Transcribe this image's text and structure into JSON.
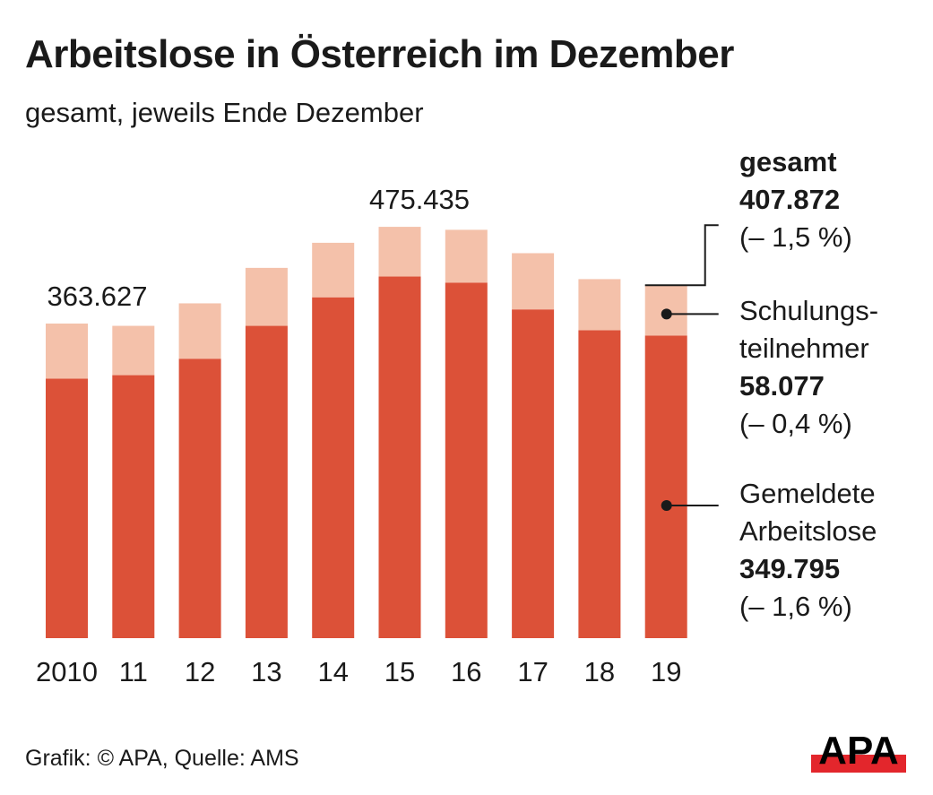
{
  "title": "Arbeitslose in Österreich im Dezember",
  "subtitle": "gesamt, jeweils Ende Dezember",
  "source": "Grafik: © APA, Quelle: AMS",
  "logo_text": "APA",
  "colors": {
    "arbeitslose": "#dc5138",
    "schulung": "#f4c1aa",
    "text": "#1a1a1a",
    "logo_red": "#e3262c"
  },
  "legend": {
    "gesamt": {
      "label": "gesamt",
      "value": "407.872",
      "change": "(– 1,5 %)"
    },
    "schulung": {
      "label_line1": "Schulungs-",
      "label_line2": "teilnehmer",
      "value": "58.077",
      "change": "(– 0,4 %)"
    },
    "arbeitslose": {
      "label_line1": "Gemeldete",
      "label_line2": "Arbeitslose",
      "value": "349.795",
      "change": "(– 1,6 %)"
    }
  },
  "chart_data": {
    "type": "bar",
    "stacked": true,
    "title": "Arbeitslose in Österreich im Dezember",
    "subtitle": "gesamt, jeweils Ende Dezember",
    "xlabel": "",
    "ylabel": "",
    "categories": [
      "2010",
      "11",
      "12",
      "13",
      "14",
      "15",
      "16",
      "17",
      "18",
      "19"
    ],
    "series": [
      {
        "name": "Gemeldete Arbeitslose",
        "values": [
          300000,
          304000,
          323000,
          361000,
          394000,
          418000,
          411000,
          380000,
          356000,
          349795
        ]
      },
      {
        "name": "Schulungsteilnehmer",
        "values": [
          63627,
          57000,
          64000,
          67000,
          63000,
          57435,
          61000,
          65000,
          59000,
          58077
        ]
      }
    ],
    "totals": [
      363627,
      361000,
      387000,
      429000,
      457000,
      475435,
      472000,
      445000,
      415000,
      407872
    ],
    "data_labels": [
      {
        "index": 0,
        "text": "363.627"
      },
      {
        "index": 5,
        "text": "475.435"
      }
    ],
    "ylim": [
      0,
      480000
    ],
    "grid": false,
    "legend": "right"
  }
}
